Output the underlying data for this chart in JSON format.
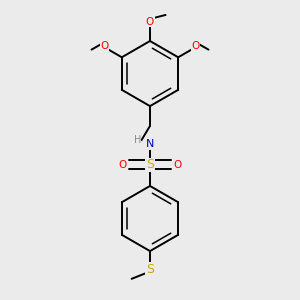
{
  "background_color": "#ebebeb",
  "bond_color": "#000000",
  "atom_colors": {
    "O": "#ff0000",
    "N": "#0000cd",
    "S_sulfonamide": "#ccaa00",
    "S_thioether": "#ccaa00",
    "H": "#888888"
  },
  "figsize": [
    3.0,
    3.0
  ],
  "dpi": 100,
  "xlim": [
    -0.38,
    0.38
  ],
  "ylim": [
    -0.52,
    0.52
  ]
}
